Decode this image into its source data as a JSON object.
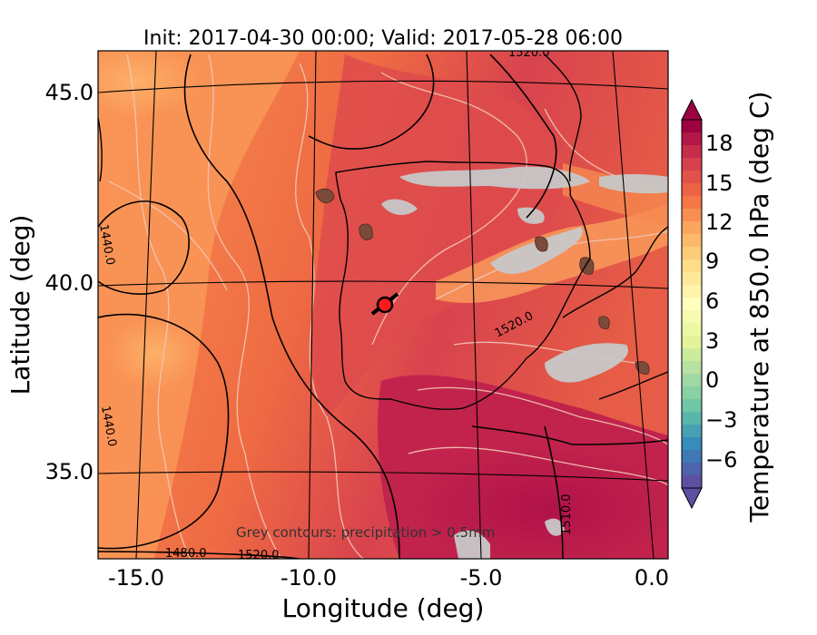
{
  "title": "Init: 2017-04-30 00:00; Valid: 2017-05-28 06:00",
  "xlabel": "Longitude (deg)",
  "ylabel": "Latitude (deg)",
  "x_ticks": [
    "-15.0",
    "-10.0",
    "-5.0",
    "0.0"
  ],
  "y_ticks": [
    "45.0",
    "40.0",
    "35.0"
  ],
  "colorbar": {
    "label": "Temperature at 850.0 hPa (deg C)",
    "ticks": [
      "18",
      "15",
      "12",
      "9",
      "6",
      "3",
      "0",
      "−3",
      "−6"
    ],
    "colors": [
      "#9e0142",
      "#d53e4f",
      "#f46d43",
      "#fdae61",
      "#fee08b",
      "#ffffbf",
      "#e6f598",
      "#abdda4",
      "#66c2a5",
      "#3288bd",
      "#5e4fa2"
    ]
  },
  "annotation": "Grey contours: precipitation > 0.5mm",
  "contour_labels": [
    "1520.0",
    "1520.0",
    "1510.0",
    "1440.0",
    "1440.0",
    "1480.0",
    "1520.0"
  ],
  "chart_data": {
    "type": "heatmap",
    "title": "Init: 2017-04-30 00:00; Valid: 2017-05-28 06:00",
    "xlabel": "Longitude (deg)",
    "ylabel": "Latitude (deg)",
    "xlim": [
      -16,
      0.2
    ],
    "ylim": [
      32.7,
      46
    ],
    "x_ticks": [
      -15,
      -10,
      -5,
      0
    ],
    "y_ticks": [
      45,
      40,
      35
    ],
    "colorbar_ticks": [
      18,
      15,
      12,
      9,
      6,
      3,
      0,
      -3,
      -6
    ],
    "colorbar_range": [
      -8,
      21
    ],
    "marker": {
      "lon": -7.6,
      "lat": 39.3,
      "color": "red"
    }
  }
}
